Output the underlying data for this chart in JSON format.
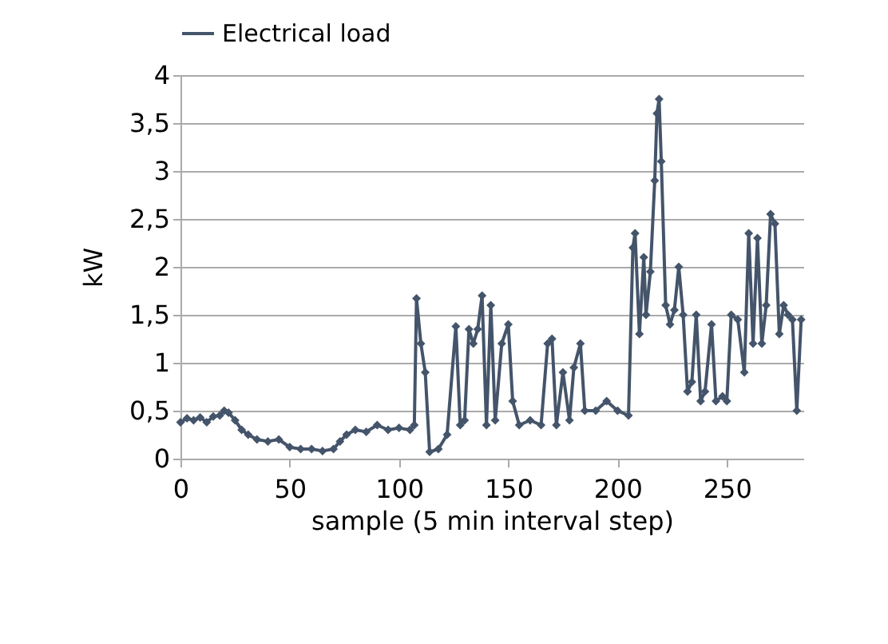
{
  "chart_data": {
    "type": "line",
    "xlabel": "sample (5 min interval step)",
    "ylabel": "kW",
    "x": [
      0,
      3,
      6,
      9,
      12,
      15,
      18,
      20,
      22,
      25,
      28,
      31,
      35,
      40,
      45,
      50,
      55,
      60,
      65,
      70,
      73,
      76,
      80,
      85,
      90,
      95,
      100,
      105,
      107,
      108,
      110,
      112,
      114,
      118,
      122,
      126,
      128,
      130,
      132,
      134,
      136,
      138,
      140,
      142,
      144,
      147,
      150,
      152,
      155,
      160,
      165,
      168,
      170,
      172,
      175,
      178,
      180,
      183,
      185,
      190,
      195,
      200,
      205,
      207,
      208,
      210,
      212,
      213,
      215,
      217,
      218,
      219,
      220,
      222,
      224,
      226,
      228,
      230,
      232,
      234,
      236,
      238,
      240,
      243,
      245,
      248,
      250,
      252,
      255,
      258,
      260,
      262,
      264,
      266,
      268,
      270,
      272,
      274,
      276,
      278,
      280,
      282,
      284
    ],
    "series": [
      {
        "name": "Electrical load",
        "color": "#44546a",
        "values": [
          0.38,
          0.42,
          0.4,
          0.43,
          0.38,
          0.44,
          0.45,
          0.5,
          0.48,
          0.4,
          0.3,
          0.25,
          0.2,
          0.18,
          0.2,
          0.12,
          0.1,
          0.1,
          0.08,
          0.1,
          0.18,
          0.25,
          0.3,
          0.28,
          0.35,
          0.3,
          0.32,
          0.3,
          0.35,
          1.67,
          1.2,
          0.9,
          0.07,
          0.1,
          0.25,
          1.38,
          0.35,
          0.4,
          1.35,
          1.2,
          1.35,
          1.7,
          0.35,
          1.6,
          0.4,
          1.2,
          1.4,
          0.6,
          0.35,
          0.4,
          0.35,
          1.2,
          1.25,
          0.35,
          0.9,
          0.4,
          0.95,
          1.2,
          0.5,
          0.5,
          0.6,
          0.5,
          0.45,
          2.2,
          2.35,
          1.3,
          2.1,
          1.5,
          1.95,
          2.9,
          3.6,
          3.75,
          3.1,
          1.6,
          1.4,
          1.55,
          2.0,
          1.5,
          0.7,
          0.8,
          1.5,
          0.6,
          0.7,
          1.4,
          0.6,
          0.65,
          0.6,
          1.5,
          1.45,
          0.9,
          2.35,
          1.2,
          2.3,
          1.2,
          1.6,
          2.55,
          2.45,
          1.3,
          1.6,
          1.5,
          1.45,
          0.5,
          1.45
        ]
      }
    ],
    "xlim": [
      0,
      285
    ],
    "xticks": [
      0,
      50,
      100,
      150,
      200,
      250
    ],
    "ylim": [
      0,
      4
    ],
    "yticks": [
      0,
      {
        "value": 0.5,
        "label": "0,5"
      },
      1,
      {
        "value": 1.5,
        "label": "1,5"
      },
      2,
      {
        "value": 2.5,
        "label": "2,5"
      },
      3,
      {
        "value": 3.5,
        "label": "3,5"
      },
      4
    ],
    "grid": "y",
    "legend": "top",
    "marker": "diamond",
    "line_style": "solid"
  }
}
